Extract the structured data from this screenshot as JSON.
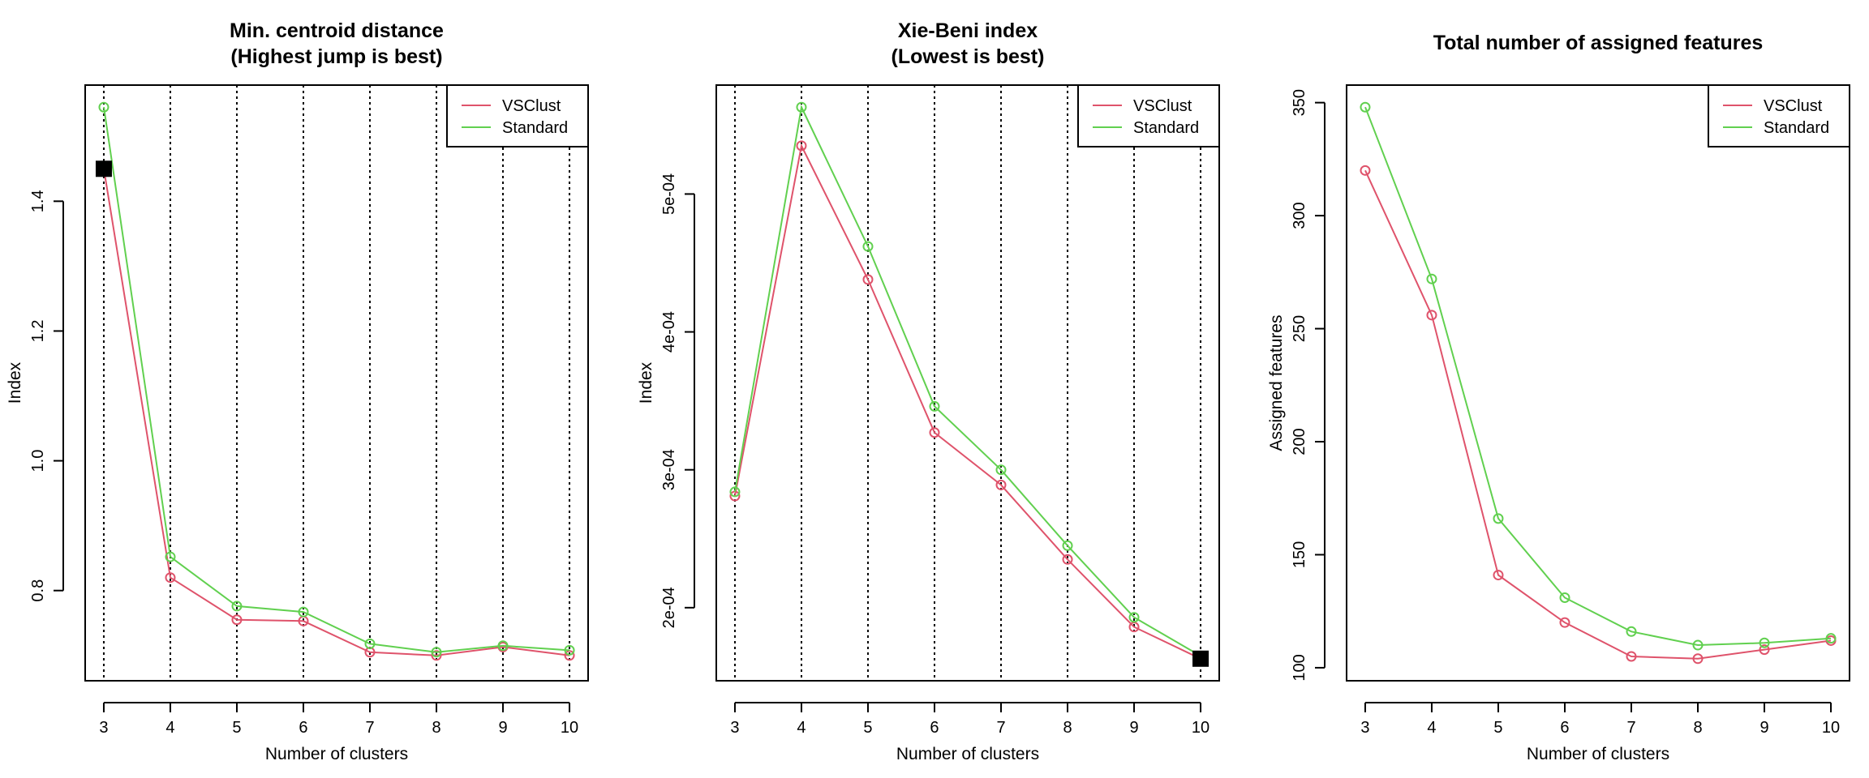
{
  "chart_data": [
    {
      "type": "line",
      "title": "Min. centroid distance",
      "subtitle": "(Highest jump is best)",
      "xlabel": "Number of clusters",
      "ylabel": "Index",
      "x": [
        3,
        4,
        5,
        6,
        7,
        8,
        9,
        10
      ],
      "xlim": [
        3,
        10
      ],
      "ylim": [
        0.695,
        1.545
      ],
      "yticks": [
        0.8,
        1.0,
        1.2,
        1.4
      ],
      "ytick_labels": [
        "0.8",
        "1.0",
        "1.2",
        "1.4"
      ],
      "series": [
        {
          "name": "VSClust",
          "color": "#DF536B",
          "values": [
            1.45,
            0.82,
            0.755,
            0.753,
            0.705,
            0.7,
            0.713,
            0.7
          ]
        },
        {
          "name": "Standard",
          "color": "#61D04F",
          "values": [
            1.545,
            0.852,
            0.776,
            0.767,
            0.718,
            0.705,
            0.715,
            0.708
          ]
        }
      ],
      "vlines": [
        3,
        4,
        5,
        6,
        7,
        8,
        9,
        10
      ],
      "marker": {
        "x": 3,
        "y": 1.45,
        "shape": "filled-square"
      },
      "legend": "top-right",
      "grid": false
    },
    {
      "type": "line",
      "title": "Xie-Beni index",
      "subtitle": "(Lowest is best)",
      "xlabel": "Number of clusters",
      "ylabel": "Index",
      "x": [
        3,
        4,
        5,
        6,
        7,
        8,
        9,
        10
      ],
      "xlim": [
        3,
        10
      ],
      "ylim": [
        0.000163,
        0.000563
      ],
      "yticks": [
        0.0002,
        0.0003,
        0.0004,
        0.0005
      ],
      "ytick_labels": [
        "2e-04",
        "3e-04",
        "4e-04",
        "5e-04"
      ],
      "series": [
        {
          "name": "VSClust",
          "color": "#DF536B",
          "values": [
            0.000281,
            0.000535,
            0.000438,
            0.000327,
            0.000289,
            0.000235,
            0.000186,
            0.000163
          ]
        },
        {
          "name": "Standard",
          "color": "#61D04F",
          "values": [
            0.000284,
            0.000563,
            0.000462,
            0.000346,
            0.0003,
            0.000245,
            0.000193,
            0.000165
          ]
        }
      ],
      "vlines": [
        3,
        4,
        5,
        6,
        7,
        8,
        9,
        10
      ],
      "marker": {
        "x": 10,
        "y": 0.000163,
        "shape": "filled-square"
      },
      "legend": "top-right",
      "grid": false
    },
    {
      "type": "line",
      "title": "Total number of assigned features",
      "subtitle": "",
      "xlabel": "Number of clusters",
      "ylabel": "Assigned features",
      "x": [
        3,
        4,
        5,
        6,
        7,
        8,
        9,
        10
      ],
      "xlim": [
        3,
        10
      ],
      "ylim": [
        104,
        348
      ],
      "yticks": [
        100,
        150,
        200,
        250,
        300,
        350
      ],
      "ytick_labels": [
        "100",
        "150",
        "200",
        "250",
        "300",
        "350"
      ],
      "series": [
        {
          "name": "VSClust",
          "color": "#DF536B",
          "values": [
            320,
            256,
            141,
            120,
            105,
            104,
            108,
            112
          ]
        },
        {
          "name": "Standard",
          "color": "#61D04F",
          "values": [
            348,
            272,
            166,
            131,
            116,
            110,
            111,
            113
          ]
        }
      ],
      "vlines": [],
      "marker": null,
      "legend": "top-right",
      "grid": false
    }
  ]
}
